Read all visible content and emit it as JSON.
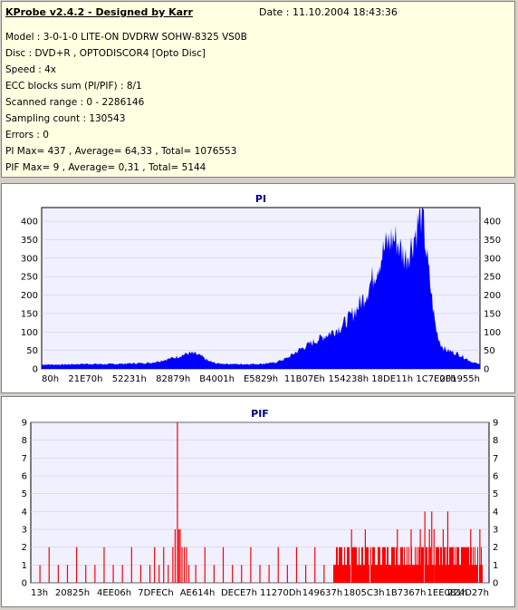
{
  "header": {
    "title": "KProbe v2.4.2 - Designed by Karr",
    "date": "Date : 11.10.2004 18:43:36"
  },
  "info_lines": [
    "Model : 3-0-1-0 LITE-ON DVDRW SOHW-8325  VS0B",
    "Disc : DVD+R , OPTODISCOR4 [Opto Disc]",
    "Speed : 4x",
    "ECC blocks sum (PI/PIF) : 8/1",
    "Scanned range : 0 - 2286146",
    "Sampling count : 130543",
    "Errors : 0",
    "PI Max= 437 , Average= 64,33 , Total= 1076553",
    "PIF Max= 9 , Average= 0,31 , Total= 5144"
  ],
  "colors": {
    "pi_fill": "#0000ff",
    "pif_fill": "#ff0000",
    "plot_bg": "#f0f0ff",
    "title_color": "#000080"
  },
  "chart_data": [
    {
      "type": "area",
      "title": "PI",
      "ylim": [
        0,
        437
      ],
      "yticks": [
        0,
        50,
        100,
        150,
        200,
        250,
        300,
        350,
        400
      ],
      "xticks": [
        "80h",
        "21E70h",
        "52231h",
        "82879h",
        "B4001h",
        "E5829h",
        "11B07Eh",
        "154238h",
        "18DE11h",
        "1C7E0Fh",
        "201955h"
      ],
      "x_domain": [
        0,
        1
      ],
      "series": [
        {
          "points": [
            [
              0.0,
              12
            ],
            [
              0.05,
              12
            ],
            [
              0.1,
              14
            ],
            [
              0.15,
              13
            ],
            [
              0.2,
              15
            ],
            [
              0.25,
              17
            ],
            [
              0.28,
              25
            ],
            [
              0.31,
              34
            ],
            [
              0.335,
              44
            ],
            [
              0.35,
              42
            ],
            [
              0.365,
              35
            ],
            [
              0.38,
              22
            ],
            [
              0.4,
              15
            ],
            [
              0.45,
              13
            ],
            [
              0.5,
              14
            ],
            [
              0.53,
              17
            ],
            [
              0.56,
              30
            ],
            [
              0.59,
              55
            ],
            [
              0.62,
              75
            ],
            [
              0.65,
              95
            ],
            [
              0.68,
              115
            ],
            [
              0.7,
              140
            ],
            [
              0.72,
              170
            ],
            [
              0.74,
              210
            ],
            [
              0.75,
              240
            ],
            [
              0.76,
              270
            ],
            [
              0.77,
              300
            ],
            [
              0.78,
              330
            ],
            [
              0.79,
              350
            ],
            [
              0.8,
              365
            ],
            [
              0.81,
              360
            ],
            [
              0.82,
              330
            ],
            [
              0.83,
              310
            ],
            [
              0.84,
              335
            ],
            [
              0.85,
              370
            ],
            [
              0.86,
              410
            ],
            [
              0.865,
              437
            ],
            [
              0.87,
              410
            ],
            [
              0.875,
              360
            ],
            [
              0.88,
              300
            ],
            [
              0.885,
              250
            ],
            [
              0.89,
              200
            ],
            [
              0.895,
              150
            ],
            [
              0.9,
              110
            ],
            [
              0.91,
              70
            ],
            [
              0.92,
              55
            ],
            [
              0.93,
              50
            ],
            [
              0.95,
              42
            ],
            [
              0.97,
              28
            ],
            [
              0.98,
              20
            ],
            [
              1.0,
              12
            ]
          ]
        }
      ]
    },
    {
      "type": "bar",
      "title": "PIF",
      "ylim": [
        0,
        9
      ],
      "yticks": [
        0,
        1,
        2,
        3,
        4,
        5,
        6,
        7,
        8,
        9
      ],
      "xticks": [
        "13h",
        "20825h",
        "4EE06h",
        "7DFECh",
        "AE614h",
        "DECE7h",
        "11270Dh",
        "149637h",
        "1805C3h",
        "1B7367h",
        "1EE0B1h",
        "224D27h"
      ],
      "x_domain": [
        0,
        1
      ],
      "dense_region": [
        0.66,
        0.985
      ],
      "spikes": [
        [
          0.02,
          1
        ],
        [
          0.04,
          2
        ],
        [
          0.06,
          1
        ],
        [
          0.08,
          1
        ],
        [
          0.1,
          2
        ],
        [
          0.12,
          1
        ],
        [
          0.14,
          1
        ],
        [
          0.16,
          2
        ],
        [
          0.18,
          1
        ],
        [
          0.2,
          1
        ],
        [
          0.22,
          2
        ],
        [
          0.24,
          1
        ],
        [
          0.26,
          1
        ],
        [
          0.27,
          2
        ],
        [
          0.28,
          1
        ],
        [
          0.29,
          2
        ],
        [
          0.3,
          1
        ],
        [
          0.31,
          2
        ],
        [
          0.315,
          3
        ],
        [
          0.32,
          9
        ],
        [
          0.323,
          3
        ],
        [
          0.326,
          3
        ],
        [
          0.33,
          2
        ],
        [
          0.335,
          2
        ],
        [
          0.34,
          2
        ],
        [
          0.345,
          1
        ],
        [
          0.36,
          1
        ],
        [
          0.38,
          2
        ],
        [
          0.4,
          1
        ],
        [
          0.42,
          2
        ],
        [
          0.44,
          1
        ],
        [
          0.46,
          1
        ],
        [
          0.48,
          2
        ],
        [
          0.5,
          1
        ],
        [
          0.52,
          1
        ],
        [
          0.54,
          2
        ],
        [
          0.56,
          1
        ],
        [
          0.58,
          2
        ],
        [
          0.6,
          1
        ],
        [
          0.62,
          2
        ],
        [
          0.64,
          1
        ],
        [
          0.7,
          3
        ],
        [
          0.73,
          3
        ],
        [
          0.76,
          2
        ],
        [
          0.8,
          3
        ],
        [
          0.83,
          3
        ],
        [
          0.85,
          3
        ],
        [
          0.86,
          4
        ],
        [
          0.87,
          3
        ],
        [
          0.875,
          4
        ],
        [
          0.88,
          3
        ],
        [
          0.9,
          3
        ],
        [
          0.91,
          4
        ],
        [
          0.93,
          2
        ],
        [
          0.96,
          3
        ],
        [
          0.98,
          3
        ]
      ]
    }
  ]
}
